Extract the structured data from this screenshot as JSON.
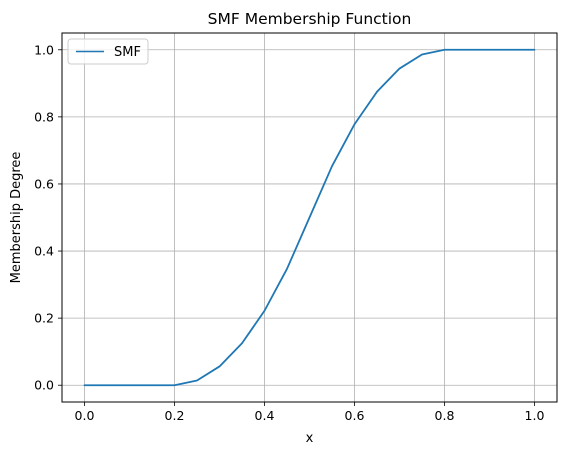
{
  "chart_data": {
    "type": "line",
    "title": "SMF Membership Function",
    "xlabel": "x",
    "ylabel": "Membership Degree",
    "xlim": [
      -0.05,
      1.05
    ],
    "ylim": [
      -0.05,
      1.05
    ],
    "xticks": [
      0.0,
      0.2,
      0.4,
      0.6,
      0.8,
      1.0
    ],
    "xtick_labels": [
      "0.0",
      "0.2",
      "0.4",
      "0.6",
      "0.8",
      "1.0"
    ],
    "yticks": [
      0.0,
      0.2,
      0.4,
      0.6,
      0.8,
      1.0
    ],
    "ytick_labels": [
      "0.0",
      "0.2",
      "0.4",
      "0.6",
      "0.8",
      "1.0"
    ],
    "grid": true,
    "legend_position": "top-left",
    "series": [
      {
        "name": "SMF",
        "color": "#1f77b4",
        "x": [
          0.0,
          0.05,
          0.1,
          0.15,
          0.2,
          0.25,
          0.3,
          0.35,
          0.4,
          0.45,
          0.5,
          0.55,
          0.6,
          0.65,
          0.7,
          0.75,
          0.8,
          0.85,
          0.9,
          0.95,
          1.0
        ],
        "y": [
          0.0,
          0.0,
          0.0,
          0.0,
          0.0,
          0.014,
          0.056,
          0.125,
          0.222,
          0.347,
          0.5,
          0.653,
          0.778,
          0.875,
          0.944,
          0.986,
          1.0,
          1.0,
          1.0,
          1.0,
          1.0
        ]
      }
    ]
  }
}
